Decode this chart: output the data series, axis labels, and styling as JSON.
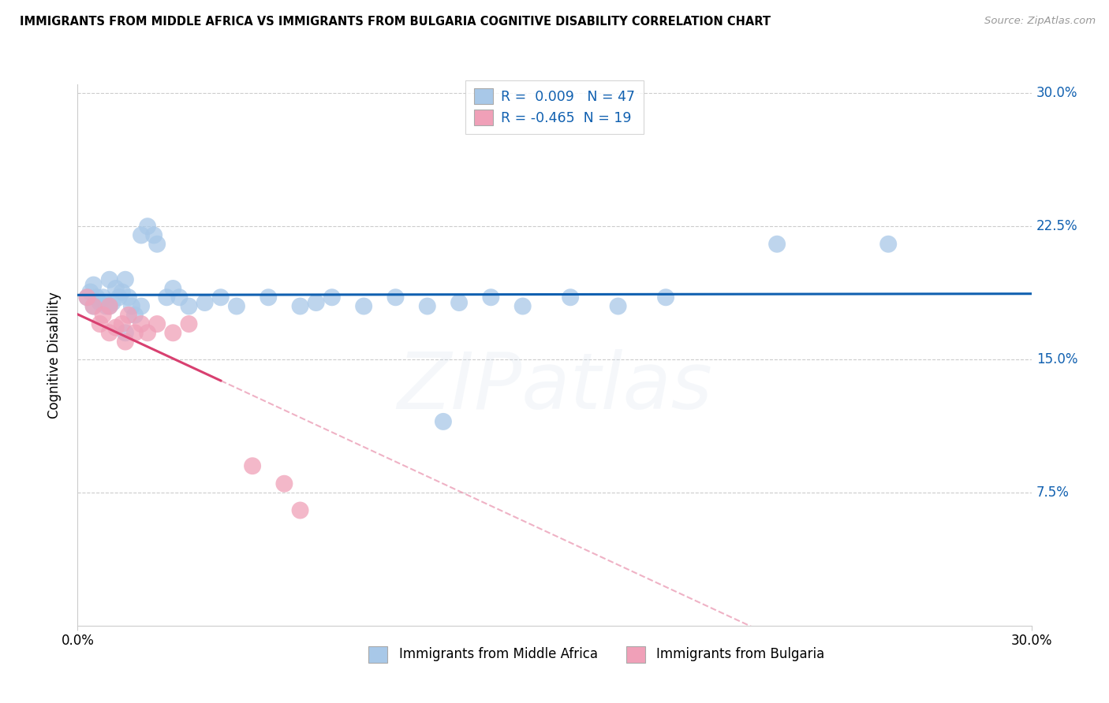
{
  "title": "IMMIGRANTS FROM MIDDLE AFRICA VS IMMIGRANTS FROM BULGARIA COGNITIVE DISABILITY CORRELATION CHART",
  "source": "Source: ZipAtlas.com",
  "ylabel": "Cognitive Disability",
  "xlim": [
    0.0,
    30.0
  ],
  "ylim": [
    0.0,
    30.5
  ],
  "yticks": [
    7.5,
    15.0,
    22.5,
    30.0
  ],
  "ytick_labels": [
    "7.5%",
    "15.0%",
    "22.5%",
    "30.0%"
  ],
  "series1_label": "Immigrants from Middle Africa",
  "series2_label": "Immigrants from Bulgaria",
  "R1": 0.009,
  "N1": 47,
  "R2": -0.465,
  "N2": 19,
  "color1": "#a8c8e8",
  "color2": "#f0a0b8",
  "line_color1": "#1060b0",
  "line_color2": "#d84070",
  "background": "#ffffff",
  "blue_points": [
    [
      0.3,
      18.5
    ],
    [
      0.4,
      18.8
    ],
    [
      0.5,
      19.2
    ],
    [
      0.5,
      18.0
    ],
    [
      0.6,
      18.5
    ],
    [
      0.7,
      18.2
    ],
    [
      0.8,
      18.5
    ],
    [
      0.9,
      18.0
    ],
    [
      1.0,
      19.5
    ],
    [
      1.0,
      18.0
    ],
    [
      1.1,
      18.2
    ],
    [
      1.2,
      19.0
    ],
    [
      1.3,
      18.5
    ],
    [
      1.4,
      18.8
    ],
    [
      1.5,
      19.5
    ],
    [
      1.6,
      18.5
    ],
    [
      1.7,
      18.0
    ],
    [
      1.8,
      17.5
    ],
    [
      2.0,
      18.0
    ],
    [
      2.0,
      22.0
    ],
    [
      2.2,
      22.5
    ],
    [
      2.4,
      22.0
    ],
    [
      2.5,
      21.5
    ],
    [
      2.8,
      18.5
    ],
    [
      3.0,
      19.0
    ],
    [
      3.2,
      18.5
    ],
    [
      3.5,
      18.0
    ],
    [
      4.0,
      18.2
    ],
    [
      4.5,
      18.5
    ],
    [
      5.0,
      18.0
    ],
    [
      6.0,
      18.5
    ],
    [
      7.0,
      18.0
    ],
    [
      7.5,
      18.2
    ],
    [
      8.0,
      18.5
    ],
    [
      9.0,
      18.0
    ],
    [
      10.0,
      18.5
    ],
    [
      11.0,
      18.0
    ],
    [
      12.0,
      18.2
    ],
    [
      13.0,
      18.5
    ],
    [
      14.0,
      18.0
    ],
    [
      15.5,
      18.5
    ],
    [
      17.0,
      18.0
    ],
    [
      18.5,
      18.5
    ],
    [
      22.0,
      21.5
    ],
    [
      25.5,
      21.5
    ],
    [
      1.5,
      16.5
    ],
    [
      11.5,
      11.5
    ]
  ],
  "pink_points": [
    [
      0.3,
      18.5
    ],
    [
      0.5,
      18.0
    ],
    [
      0.7,
      17.0
    ],
    [
      0.8,
      17.5
    ],
    [
      1.0,
      16.5
    ],
    [
      1.0,
      18.0
    ],
    [
      1.2,
      16.8
    ],
    [
      1.4,
      17.0
    ],
    [
      1.5,
      16.0
    ],
    [
      1.6,
      17.5
    ],
    [
      1.8,
      16.5
    ],
    [
      2.0,
      17.0
    ],
    [
      2.2,
      16.5
    ],
    [
      2.5,
      17.0
    ],
    [
      3.0,
      16.5
    ],
    [
      3.5,
      17.0
    ],
    [
      5.5,
      9.0
    ],
    [
      7.0,
      6.5
    ],
    [
      6.5,
      8.0
    ]
  ],
  "pink_line_solid_end": 4.5,
  "watermark_text": "ZIPatlas",
  "watermark_fontsize": 72,
  "watermark_alpha": 0.18
}
